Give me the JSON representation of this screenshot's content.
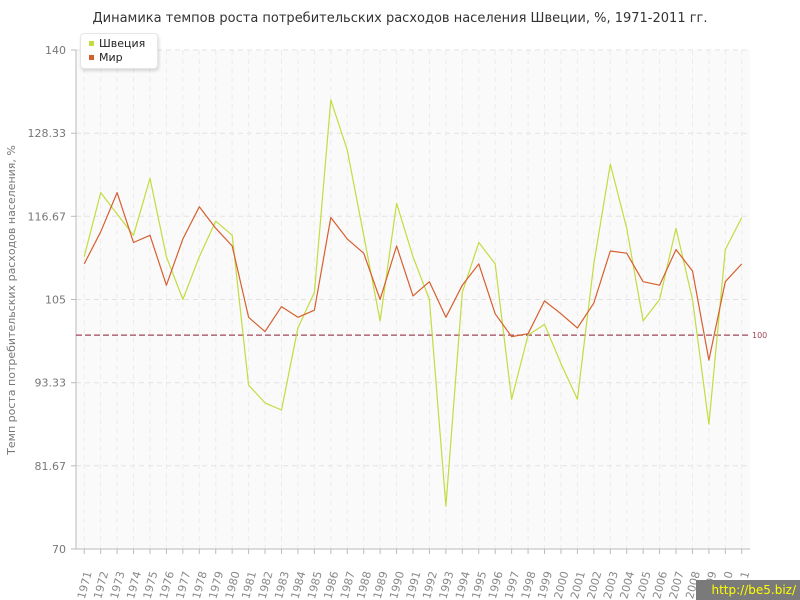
{
  "chart_data": {
    "type": "line",
    "title": "Динамика темпов роста потребительских расходов населения Швеции, %, 1971-2011 гг.",
    "xlabel": "",
    "ylabel": "Темп роста потребительских расходов населения, %",
    "ylim": [
      70,
      140
    ],
    "yticks": [
      "70",
      "81.67",
      "93.33",
      "105",
      "116.67",
      "128.33",
      "140"
    ],
    "grid": true,
    "legend_position": "top-left",
    "reference_line": {
      "value": 100,
      "label": "100",
      "color": "#a0455a"
    },
    "x": [
      "1971",
      "1972",
      "1973",
      "1974",
      "1975",
      "1976",
      "1977",
      "1978",
      "1979",
      "1980",
      "1981",
      "1982",
      "1983",
      "1984",
      "1985",
      "1986",
      "1987",
      "1988",
      "1989",
      "1990",
      "1991",
      "1992",
      "1993",
      "1994",
      "1995",
      "1996",
      "1997",
      "1998",
      "1999",
      "2000",
      "2001",
      "2002",
      "2003",
      "2004",
      "2005",
      "2006",
      "2007",
      "2008",
      "2009",
      "2010",
      "2011"
    ],
    "series": [
      {
        "name": "Швеция",
        "color": "#c3dc3f",
        "values": [
          111,
          120,
          117,
          114,
          122,
          111,
          105,
          111,
          116,
          114,
          93,
          90.5,
          89.5,
          101,
          106,
          133,
          126,
          114,
          102,
          118.5,
          111,
          105,
          76,
          106,
          113,
          110,
          91,
          100,
          101.5,
          96,
          91,
          110,
          124,
          115,
          102,
          105,
          115,
          105,
          87.5,
          112,
          116.5
        ]
      },
      {
        "name": "Мир",
        "color": "#d65f30",
        "values": [
          110,
          114.5,
          120,
          113,
          114,
          107,
          113.5,
          118,
          115,
          112.5,
          102.5,
          100.5,
          104,
          102.5,
          103.5,
          116.5,
          113.5,
          111.5,
          105,
          112.5,
          105.5,
          107.5,
          102.5,
          107,
          110,
          103,
          99.8,
          100.2,
          104.8,
          103,
          101,
          104.5,
          111.8,
          111.5,
          107.5,
          107,
          112,
          109,
          96.5,
          107.5,
          110
        ]
      }
    ]
  },
  "watermark": "http://be5.biz/"
}
